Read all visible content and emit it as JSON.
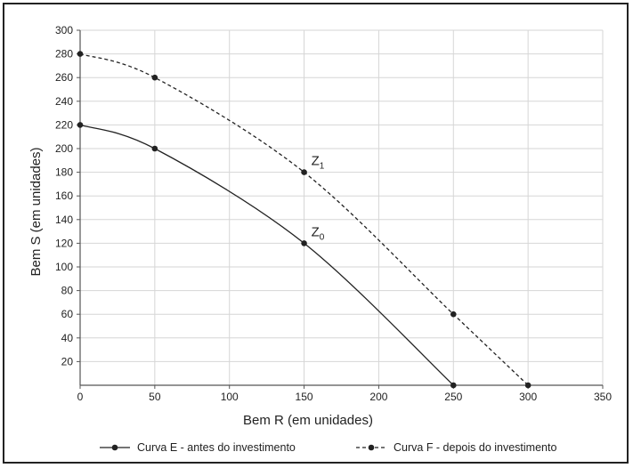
{
  "chart_data": {
    "type": "line",
    "title": "",
    "xlabel": "Bem R (em unidades)",
    "ylabel": "Bem S (em unidades)",
    "xlim": [
      0,
      350
    ],
    "ylim": [
      0,
      300
    ],
    "x_ticks": [
      0,
      50,
      100,
      150,
      200,
      250,
      300,
      350
    ],
    "y_ticks": [
      20,
      40,
      60,
      80,
      100,
      120,
      140,
      160,
      180,
      200,
      220,
      240,
      260,
      280,
      300
    ],
    "grid": true,
    "legend_position": "bottom",
    "series": [
      {
        "name": "Curva E - antes do investimento",
        "style": "solid",
        "color": "#222222",
        "points": [
          [
            0,
            220
          ],
          [
            50,
            200
          ],
          [
            150,
            120
          ],
          [
            250,
            0
          ]
        ]
      },
      {
        "name": "Curva F - depois do investimento",
        "style": "dashed",
        "color": "#222222",
        "points": [
          [
            0,
            280
          ],
          [
            50,
            260
          ],
          [
            150,
            180
          ],
          [
            250,
            60
          ],
          [
            300,
            0
          ]
        ]
      }
    ],
    "annotations": [
      {
        "label": "Z",
        "subscript": "0",
        "x": 150,
        "y": 120
      },
      {
        "label": "Z",
        "subscript": "1",
        "x": 150,
        "y": 180
      }
    ]
  }
}
